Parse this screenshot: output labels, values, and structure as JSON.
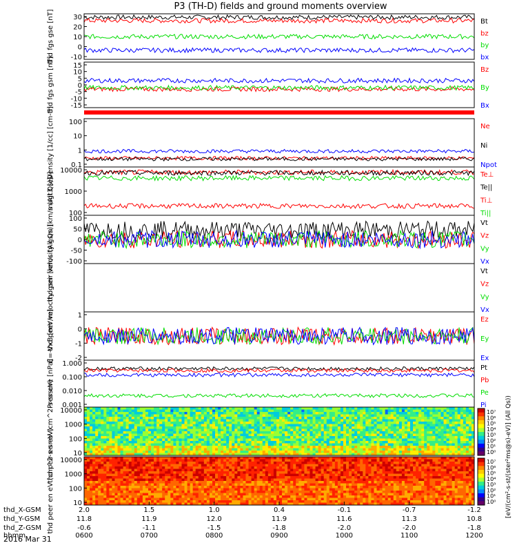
{
  "title": "P3 (TH-D) fields and ground moments overview",
  "date_label": "2016 Mar 31",
  "orbit_rows": [
    {
      "label": "thd_X-GSM",
      "values": [
        "2.0",
        "1.5",
        "1.0",
        "0.4",
        "-0.1",
        "-0.7",
        "-1.2"
      ]
    },
    {
      "label": "thd_Y-GSM",
      "values": [
        "11.8",
        "11.9",
        "12.0",
        "11.9",
        "11.6",
        "11.3",
        "10.8"
      ]
    },
    {
      "label": "thd_Z-GSM",
      "values": [
        "-0.6",
        "-1.1",
        "-1.5",
        "-1.8",
        "-2.0",
        "-2.0",
        "-1.8"
      ]
    },
    {
      "label": "hhmm",
      "values": [
        "0600",
        "0700",
        "0800",
        "0900",
        "1000",
        "1100",
        "1200"
      ]
    }
  ],
  "colorbar": {
    "tick_labels": [
      "10⁷",
      "10⁶",
      "10⁵",
      "10⁴",
      "10³",
      "10²",
      "10¹",
      "10⁰"
    ],
    "label": "[eV/(cm²-s-st/(ster²ms@s)-eV)] (All Qs))"
  },
  "chart_data": [
    {
      "id": "fgs_gse",
      "type": "line",
      "ylabel": "thd fgs gse [nT]",
      "ylim": [
        -10,
        30
      ],
      "yticks": [
        "30",
        "20",
        "10",
        "0",
        "-10"
      ],
      "series": [
        {
          "name": "Bt",
          "color": "#000000",
          "mean": 27
        },
        {
          "name": "bz",
          "color": "#ff0000",
          "mean": 24
        },
        {
          "name": "by",
          "color": "#00dd00",
          "mean": 10
        },
        {
          "name": "bx",
          "color": "#0000ff",
          "mean": -2
        }
      ]
    },
    {
      "id": "fgs_gsm",
      "type": "line",
      "ylabel": "thd fgs gsm [nT]",
      "ylim": [
        -17,
        15
      ],
      "yticks": [
        "15",
        "10",
        "5",
        "0",
        "-5",
        "-10",
        "-15"
      ],
      "series": [
        {
          "name": "Bz",
          "color": "#ff0000",
          "mean": -4
        },
        {
          "name": "By",
          "color": "#00dd00",
          "mean": -3
        },
        {
          "name": "Bx",
          "color": "#0000ff",
          "mean": 2
        }
      ]
    },
    {
      "id": "density",
      "type": "line",
      "ylabel": "Density [1/cc] [cm-3]",
      "ylim": [
        0.1,
        200
      ],
      "yticks": [
        "100",
        "10",
        "1",
        "0.1"
      ],
      "series": [
        {
          "name": "Ne",
          "color": "#ff0000",
          "mean": 0.4
        },
        {
          "name": "Ni",
          "color": "#000000",
          "mean": 0.35
        },
        {
          "name": "Npot",
          "color": "#0000ff",
          "mean": 1.2
        }
      ]
    },
    {
      "id": "temperature",
      "type": "line",
      "ylabel": "magt3 [eV]",
      "ylim": [
        50,
        15000
      ],
      "yticks": [
        "10000",
        "1000",
        "100"
      ],
      "series": [
        {
          "name": "Te⊥",
          "color": "#ff0000",
          "mean": 8000
        },
        {
          "name": "Te||",
          "color": "#000000",
          "mean": 7500
        },
        {
          "name": "Ti⊥",
          "color": "#ff0000",
          "mean": 150
        },
        {
          "name": "Ti||",
          "color": "#00dd00",
          "mean": 4000
        }
      ]
    },
    {
      "id": "peir_vel",
      "type": "line",
      "ylabel": "thd peir velocity gsm [km/s (All Qs)]",
      "ylim": [
        -100,
        100
      ],
      "yticks": [
        "100",
        "50",
        "0",
        "-50",
        "-100"
      ],
      "series": [
        {
          "name": "Vt",
          "color": "#000000",
          "mean": 40
        },
        {
          "name": "Vz",
          "color": "#ff0000",
          "mean": 0
        },
        {
          "name": "Vy",
          "color": "#00dd00",
          "mean": 0
        },
        {
          "name": "Vx",
          "color": "#0000ff",
          "mean": 0
        }
      ]
    },
    {
      "id": "peer_vel",
      "type": "line",
      "ylabel": "thd peer velocity gsm [km/s (All Qs)]",
      "ylim": [
        -100,
        100
      ],
      "yticks": [],
      "series": [
        {
          "name": "Vt",
          "color": "#000000"
        },
        {
          "name": "Vz",
          "color": "#ff0000"
        },
        {
          "name": "Vy",
          "color": "#00dd00"
        },
        {
          "name": "Vx",
          "color": "#0000ff"
        }
      ]
    },
    {
      "id": "efield",
      "type": "line",
      "ylabel": "E=-VxB [mV/m]",
      "ylim": [
        -2,
        2
      ],
      "yticks": [
        "1",
        "0",
        "-1",
        "-2"
      ],
      "series": [
        {
          "name": "Ez",
          "color": "#ff0000",
          "mean": 0
        },
        {
          "name": "Ey",
          "color": "#00dd00",
          "mean": 0
        },
        {
          "name": "Ex",
          "color": "#0000ff",
          "mean": 0
        }
      ]
    },
    {
      "id": "pressure",
      "type": "line",
      "ylabel": "Pressure [nPa]",
      "ylim": [
        0.001,
        1.5
      ],
      "yticks": [
        "1.000",
        "0.100",
        "0.010",
        "0.001"
      ],
      "series": [
        {
          "name": "Pt",
          "color": "#000000",
          "mean": 0.4
        },
        {
          "name": "Pb",
          "color": "#ff0000",
          "mean": 0.3
        },
        {
          "name": "Pe",
          "color": "#00dd00",
          "mean": 0.006
        },
        {
          "name": "Pi",
          "color": "#0000ff",
          "mean": 0.15
        }
      ]
    },
    {
      "id": "peir_spec",
      "type": "heatmap",
      "ylabel": "thd peir en eV (cm^2-s-sr-eV)",
      "ylim": [
        5,
        25000
      ],
      "yticks": [
        "10000",
        "1000",
        "100",
        "10"
      ]
    },
    {
      "id": "peer_spec",
      "type": "heatmap",
      "ylabel": "thd peer en eV (cm^2-s-sr-eV)",
      "ylim": [
        5,
        25000
      ],
      "yticks": [
        "10000",
        "1000",
        "100",
        "10"
      ]
    }
  ]
}
